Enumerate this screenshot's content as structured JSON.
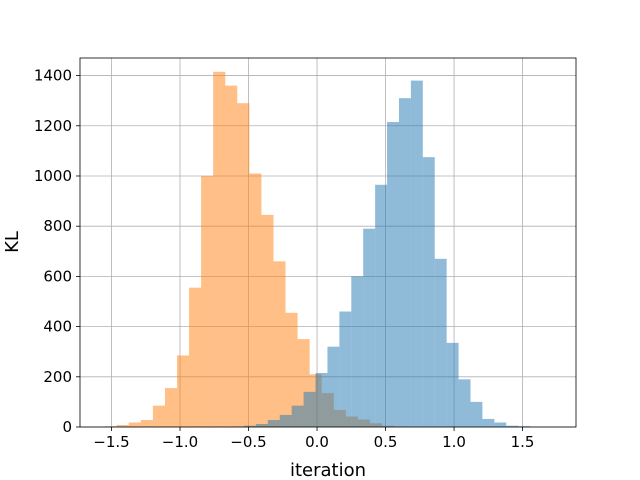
{
  "chart_data": {
    "type": "histogram",
    "xlabel": "iteration",
    "ylabel": "KL",
    "xlim": [
      -1.73,
      1.89
    ],
    "ylim": [
      0,
      1470
    ],
    "xticks": [
      -1.5,
      -1.0,
      -0.5,
      0.0,
      0.5,
      1.0,
      1.5
    ],
    "xtick_labels": [
      "−1.5",
      "−1.0",
      "−0.5",
      "0.0",
      "0.5",
      "1.0",
      "1.5"
    ],
    "yticks": [
      0,
      200,
      400,
      600,
      800,
      1000,
      1200,
      1400
    ],
    "ytick_labels": [
      "0",
      "200",
      "400",
      "600",
      "800",
      "1000",
      "1200",
      "1400"
    ],
    "grid": true,
    "legend": "none",
    "series": [
      {
        "color": "#ff7f0e",
        "alpha": 0.5,
        "bins": [
          {
            "x0": -1.55,
            "x1": -1.462,
            "count": 3
          },
          {
            "x0": -1.462,
            "x1": -1.374,
            "count": 8
          },
          {
            "x0": -1.374,
            "x1": -1.286,
            "count": 18
          },
          {
            "x0": -1.286,
            "x1": -1.198,
            "count": 28
          },
          {
            "x0": -1.198,
            "x1": -1.11,
            "count": 85
          },
          {
            "x0": -1.11,
            "x1": -1.022,
            "count": 155
          },
          {
            "x0": -1.022,
            "x1": -0.934,
            "count": 285
          },
          {
            "x0": -0.934,
            "x1": -0.846,
            "count": 555
          },
          {
            "x0": -0.846,
            "x1": -0.758,
            "count": 1000
          },
          {
            "x0": -0.758,
            "x1": -0.67,
            "count": 1415
          },
          {
            "x0": -0.67,
            "x1": -0.582,
            "count": 1360
          },
          {
            "x0": -0.582,
            "x1": -0.494,
            "count": 1290
          },
          {
            "x0": -0.494,
            "x1": -0.406,
            "count": 1010
          },
          {
            "x0": -0.406,
            "x1": -0.318,
            "count": 845
          },
          {
            "x0": -0.318,
            "x1": -0.23,
            "count": 660
          },
          {
            "x0": -0.23,
            "x1": -0.142,
            "count": 455
          },
          {
            "x0": -0.142,
            "x1": -0.054,
            "count": 350
          },
          {
            "x0": -0.054,
            "x1": 0.034,
            "count": 210
          },
          {
            "x0": 0.034,
            "x1": 0.122,
            "count": 135
          },
          {
            "x0": 0.122,
            "x1": 0.21,
            "count": 68
          },
          {
            "x0": 0.21,
            "x1": 0.298,
            "count": 42
          },
          {
            "x0": 0.298,
            "x1": 0.386,
            "count": 30
          },
          {
            "x0": 0.386,
            "x1": 0.474,
            "count": 15
          },
          {
            "x0": 0.474,
            "x1": 0.562,
            "count": 5
          },
          {
            "x0": 0.562,
            "x1": 0.65,
            "count": 2
          }
        ]
      },
      {
        "color": "#1f77b4",
        "alpha": 0.5,
        "bins": [
          {
            "x0": -0.62,
            "x1": -0.533,
            "count": 2
          },
          {
            "x0": -0.533,
            "x1": -0.446,
            "count": 5
          },
          {
            "x0": -0.446,
            "x1": -0.359,
            "count": 12
          },
          {
            "x0": -0.359,
            "x1": -0.272,
            "count": 28
          },
          {
            "x0": -0.272,
            "x1": -0.185,
            "count": 48
          },
          {
            "x0": -0.185,
            "x1": -0.098,
            "count": 85
          },
          {
            "x0": -0.098,
            "x1": -0.011,
            "count": 140
          },
          {
            "x0": -0.011,
            "x1": 0.076,
            "count": 215
          },
          {
            "x0": 0.076,
            "x1": 0.163,
            "count": 320
          },
          {
            "x0": 0.163,
            "x1": 0.25,
            "count": 460
          },
          {
            "x0": 0.25,
            "x1": 0.337,
            "count": 600
          },
          {
            "x0": 0.337,
            "x1": 0.424,
            "count": 790
          },
          {
            "x0": 0.424,
            "x1": 0.511,
            "count": 965
          },
          {
            "x0": 0.511,
            "x1": 0.598,
            "count": 1215
          },
          {
            "x0": 0.598,
            "x1": 0.685,
            "count": 1310
          },
          {
            "x0": 0.685,
            "x1": 0.772,
            "count": 1380
          },
          {
            "x0": 0.772,
            "x1": 0.859,
            "count": 1075
          },
          {
            "x0": 0.859,
            "x1": 0.946,
            "count": 670
          },
          {
            "x0": 0.946,
            "x1": 1.033,
            "count": 335
          },
          {
            "x0": 1.033,
            "x1": 1.12,
            "count": 190
          },
          {
            "x0": 1.12,
            "x1": 1.207,
            "count": 100
          },
          {
            "x0": 1.207,
            "x1": 1.294,
            "count": 32
          },
          {
            "x0": 1.294,
            "x1": 1.381,
            "count": 18
          },
          {
            "x0": 1.381,
            "x1": 1.468,
            "count": 5
          },
          {
            "x0": 1.468,
            "x1": 1.555,
            "count": 3
          }
        ]
      }
    ]
  }
}
